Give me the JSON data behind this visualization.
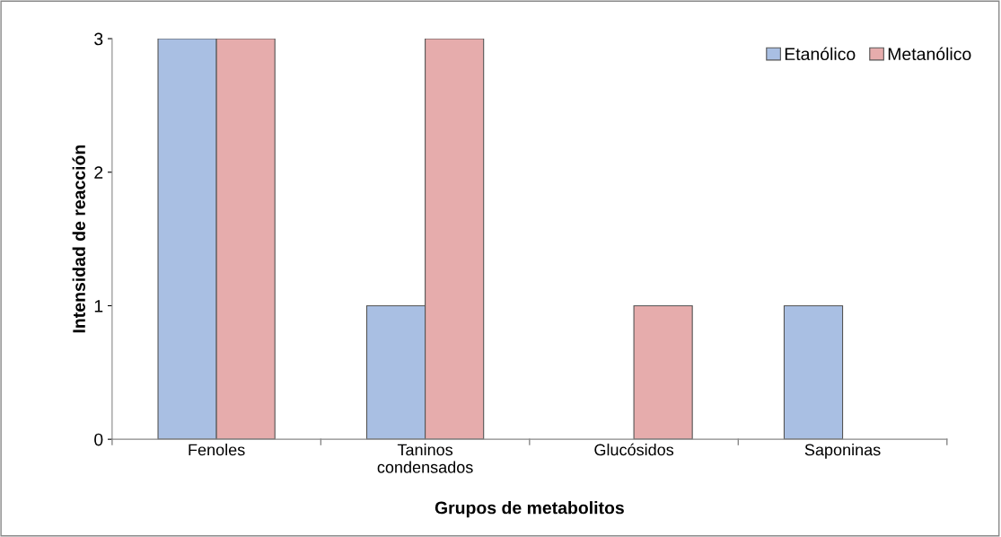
{
  "chart_data": {
    "type": "bar",
    "xlabel": "Grupos de metabolitos",
    "ylabel": "Intensidad de reacción",
    "categories": [
      "Fenoles",
      "Taninos\ncondensados",
      "Glucósidos",
      "Saponinas"
    ],
    "series": [
      {
        "name": "Etanólico",
        "color": "#a9bfe3",
        "values": [
          3,
          1,
          0,
          1
        ]
      },
      {
        "name": "Metanólico",
        "color": "#e6acac",
        "values": [
          3,
          3,
          1,
          0
        ]
      }
    ],
    "ylim": [
      0,
      3
    ],
    "yticks": [
      0,
      1,
      2,
      3
    ],
    "grid": false,
    "legend": "top right"
  }
}
